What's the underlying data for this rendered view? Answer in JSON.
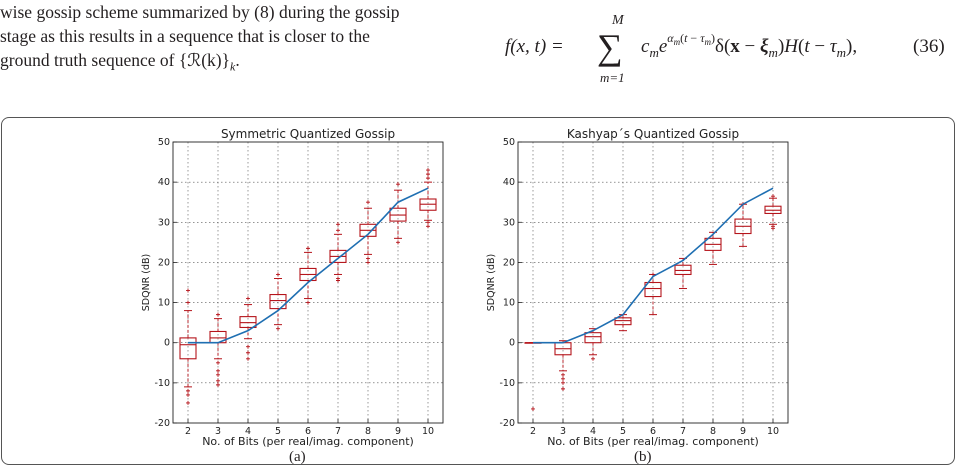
{
  "paper_text": {
    "lines": [
      "wise gossip scheme summarized by (8) during the gossip",
      "stage as this results in a sequence that is closer to the",
      "ground truth sequence of {ℛ(k)}",
      "k",
      "."
    ]
  },
  "equation": {
    "lhs": "f(x, t) =",
    "sum_upper": "M",
    "sum_lower": "m=1",
    "rhs": "c",
    "number": "(36)"
  },
  "figures": {
    "a_caption": "(a)",
    "b_caption": "(b)"
  },
  "chart_data": [
    {
      "type": "box",
      "title": "Symmetric Quantized Gossip",
      "xlabel": "No. of Bits (per real/imag. component)",
      "ylabel": "SDQNR (dB)",
      "x": [
        2,
        3,
        4,
        5,
        6,
        7,
        8,
        9,
        10
      ],
      "xlim": [
        1.5,
        10.5
      ],
      "ylim": [
        -20,
        50
      ],
      "yticks": [
        -20,
        -10,
        0,
        10,
        20,
        30,
        40,
        50
      ],
      "grid": true,
      "boxes": [
        {
          "x": 2,
          "q1": -4,
          "median": -0.5,
          "q3": 1.2,
          "whisker_low": -11,
          "whisker_high": 8
        },
        {
          "x": 3,
          "q1": 0,
          "median": 1.2,
          "q3": 2.8,
          "whisker_low": -4,
          "whisker_high": 6
        },
        {
          "x": 4,
          "q1": 3.8,
          "median": 5,
          "q3": 6.5,
          "whisker_low": 1,
          "whisker_high": 9.5
        },
        {
          "x": 5,
          "q1": 8.5,
          "median": 10.5,
          "q3": 12,
          "whisker_low": 4.5,
          "whisker_high": 16
        },
        {
          "x": 6,
          "q1": 15.5,
          "median": 17,
          "q3": 18.5,
          "whisker_low": 11,
          "whisker_high": 22.5
        },
        {
          "x": 7,
          "q1": 20,
          "median": 21.5,
          "q3": 23,
          "whisker_low": 17,
          "whisker_high": 27
        },
        {
          "x": 8,
          "q1": 26.5,
          "median": 28,
          "q3": 29.5,
          "whisker_low": 22,
          "whisker_high": 33.5
        },
        {
          "x": 9,
          "q1": 30.3,
          "median": 31.8,
          "q3": 33.5,
          "whisker_low": 26,
          "whisker_high": 38
        },
        {
          "x": 10,
          "q1": 33,
          "median": 34.5,
          "q3": 35.8,
          "whisker_low": 30.5,
          "whisker_high": 40
        }
      ],
      "outliers": [
        {
          "x": 2,
          "values": [
            -12,
            -13,
            -15,
            10,
            13
          ]
        },
        {
          "x": 3,
          "values": [
            -5,
            -7,
            -8,
            -9.5,
            -10.5,
            7
          ]
        },
        {
          "x": 4,
          "values": [
            -1,
            -2.5,
            -4,
            11
          ]
        },
        {
          "x": 5,
          "values": [
            3.5,
            17
          ]
        },
        {
          "x": 6,
          "values": [
            10,
            23.5
          ]
        },
        {
          "x": 7,
          "values": [
            15.5,
            16,
            28,
            29.5
          ]
        },
        {
          "x": 8,
          "values": [
            20,
            21,
            35
          ]
        },
        {
          "x": 9,
          "values": [
            25,
            39.5
          ]
        },
        {
          "x": 10,
          "values": [
            29,
            30,
            41,
            42,
            43
          ]
        }
      ],
      "line": {
        "x": [
          2,
          3,
          4,
          5,
          6,
          7,
          8,
          9,
          10
        ],
        "y": [
          0,
          0,
          3,
          8,
          15,
          21,
          27,
          35,
          38.5
        ]
      }
    },
    {
      "type": "box",
      "title": "Kashyap´s Quantized Gossip",
      "xlabel": "No. of Bits (per real/imag. component)",
      "ylabel": "SDQNR (dB)",
      "x": [
        2,
        3,
        4,
        5,
        6,
        7,
        8,
        9,
        10
      ],
      "xlim": [
        1.5,
        10.5
      ],
      "ylim": [
        -20,
        50
      ],
      "yticks": [
        -20,
        -10,
        0,
        10,
        20,
        30,
        40,
        50
      ],
      "grid": true,
      "boxes": [
        {
          "x": 2,
          "q1": 0,
          "median": 0,
          "q3": 0,
          "whisker_low": 0,
          "whisker_high": 0
        },
        {
          "x": 3,
          "q1": -3,
          "median": -1.5,
          "q3": 0,
          "whisker_low": -7,
          "whisker_high": 0.5
        },
        {
          "x": 4,
          "q1": 0,
          "median": 1.5,
          "q3": 2.5,
          "whisker_low": -3,
          "whisker_high": 3.5
        },
        {
          "x": 5,
          "q1": 4.5,
          "median": 5.5,
          "q3": 6.2,
          "whisker_low": 3,
          "whisker_high": 7
        },
        {
          "x": 6,
          "q1": 11.5,
          "median": 13.5,
          "q3": 15,
          "whisker_low": 7,
          "whisker_high": 17
        },
        {
          "x": 7,
          "q1": 17,
          "median": 18,
          "q3": 19.3,
          "whisker_low": 13.5,
          "whisker_high": 21
        },
        {
          "x": 8,
          "q1": 23,
          "median": 24.5,
          "q3": 26,
          "whisker_low": 19.5,
          "whisker_high": 27.5
        },
        {
          "x": 9,
          "q1": 27.2,
          "median": 29,
          "q3": 30.8,
          "whisker_low": 24,
          "whisker_high": 34.5
        },
        {
          "x": 10,
          "q1": 32.2,
          "median": 33,
          "q3": 34,
          "whisker_low": 29.5,
          "whisker_high": 36
        }
      ],
      "outliers": [
        {
          "x": 2,
          "values": [
            -16.5
          ]
        },
        {
          "x": 3,
          "values": [
            -8,
            -9,
            -10,
            -11.5
          ]
        },
        {
          "x": 4,
          "values": [
            -4
          ]
        },
        {
          "x": 6,
          "values": [
            17
          ]
        },
        {
          "x": 9,
          "values": [
            34.5
          ]
        },
        {
          "x": 10,
          "values": [
            28.5,
            29,
            36.5
          ]
        }
      ],
      "line": {
        "x": [
          2,
          3,
          4,
          5,
          6,
          7,
          8,
          9,
          10
        ],
        "y": [
          0,
          0,
          3,
          7,
          16.5,
          20.5,
          27,
          34.5,
          38.5
        ]
      }
    }
  ],
  "colors": {
    "box": "#b5141b",
    "line": "#1f6fb2",
    "grid": "#555555",
    "axis": "#222222"
  }
}
